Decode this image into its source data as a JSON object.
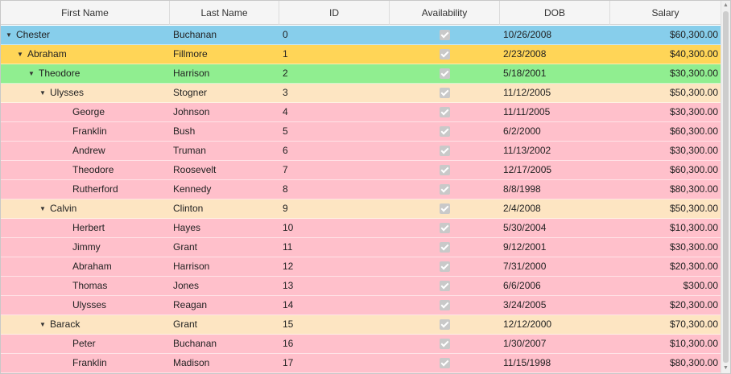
{
  "columns": [
    "First Name",
    "Last Name",
    "ID",
    "Availability",
    "DOB",
    "Salary"
  ],
  "level_colors": {
    "0": "#87ceeb",
    "1": "#ffd557",
    "2": "#90ee90",
    "3": "#fde5c2",
    "4": "#ffc0cb"
  },
  "rows": [
    {
      "level": 0,
      "expander": true,
      "first": "Chester",
      "last": "Buchanan",
      "id": "0",
      "available": true,
      "dob": "10/26/2008",
      "salary": "$60,300.00"
    },
    {
      "level": 1,
      "expander": true,
      "first": "Abraham",
      "last": "Fillmore",
      "id": "1",
      "available": true,
      "dob": "2/23/2008",
      "salary": "$40,300.00"
    },
    {
      "level": 2,
      "expander": true,
      "first": "Theodore",
      "last": "Harrison",
      "id": "2",
      "available": true,
      "dob": "5/18/2001",
      "salary": "$30,300.00"
    },
    {
      "level": 3,
      "expander": true,
      "first": "Ulysses",
      "last": "Stogner",
      "id": "3",
      "available": true,
      "dob": "11/12/2005",
      "salary": "$50,300.00"
    },
    {
      "level": 4,
      "expander": false,
      "first": "George",
      "last": "Johnson",
      "id": "4",
      "available": true,
      "dob": "11/11/2005",
      "salary": "$30,300.00"
    },
    {
      "level": 4,
      "expander": false,
      "first": "Franklin",
      "last": "Bush",
      "id": "5",
      "available": true,
      "dob": "6/2/2000",
      "salary": "$60,300.00"
    },
    {
      "level": 4,
      "expander": false,
      "first": "Andrew",
      "last": "Truman",
      "id": "6",
      "available": true,
      "dob": "11/13/2002",
      "salary": "$30,300.00"
    },
    {
      "level": 4,
      "expander": false,
      "first": "Theodore",
      "last": "Roosevelt",
      "id": "7",
      "available": true,
      "dob": "12/17/2005",
      "salary": "$60,300.00"
    },
    {
      "level": 4,
      "expander": false,
      "first": "Rutherford",
      "last": "Kennedy",
      "id": "8",
      "available": true,
      "dob": "8/8/1998",
      "salary": "$80,300.00"
    },
    {
      "level": 3,
      "expander": true,
      "first": "Calvin",
      "last": "Clinton",
      "id": "9",
      "available": true,
      "dob": "2/4/2008",
      "salary": "$50,300.00"
    },
    {
      "level": 4,
      "expander": false,
      "first": "Herbert",
      "last": "Hayes",
      "id": "10",
      "available": true,
      "dob": "5/30/2004",
      "salary": "$10,300.00"
    },
    {
      "level": 4,
      "expander": false,
      "first": "Jimmy",
      "last": "Grant",
      "id": "11",
      "available": true,
      "dob": "9/12/2001",
      "salary": "$30,300.00"
    },
    {
      "level": 4,
      "expander": false,
      "first": "Abraham",
      "last": "Harrison",
      "id": "12",
      "available": true,
      "dob": "7/31/2000",
      "salary": "$20,300.00"
    },
    {
      "level": 4,
      "expander": false,
      "first": "Thomas",
      "last": "Jones",
      "id": "13",
      "available": true,
      "dob": "6/6/2006",
      "salary": "$300.00"
    },
    {
      "level": 4,
      "expander": false,
      "first": "Ulysses",
      "last": "Reagan",
      "id": "14",
      "available": true,
      "dob": "3/24/2005",
      "salary": "$20,300.00"
    },
    {
      "level": 3,
      "expander": true,
      "first": "Barack",
      "last": "Grant",
      "id": "15",
      "available": true,
      "dob": "12/12/2000",
      "salary": "$70,300.00"
    },
    {
      "level": 4,
      "expander": false,
      "first": "Peter",
      "last": "Buchanan",
      "id": "16",
      "available": true,
      "dob": "1/30/2007",
      "salary": "$10,300.00"
    },
    {
      "level": 4,
      "expander": false,
      "first": "Franklin",
      "last": "Madison",
      "id": "17",
      "available": true,
      "dob": "11/15/1998",
      "salary": "$80,300.00"
    }
  ],
  "icons": {
    "expander": "triangle-down-icon",
    "checkbox": "checkmark-icon",
    "scroll_up": "arrow-up-icon",
    "scroll_down": "arrow-down-icon"
  }
}
